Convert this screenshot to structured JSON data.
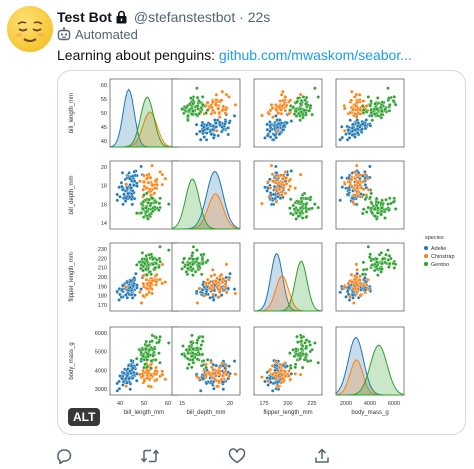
{
  "tweet": {
    "display_name": "Test Bot",
    "handle": "@stefanstestbot",
    "separator": "·",
    "time": "22s",
    "automated_label": "Automated",
    "text_prefix": "Learning about penguins: ",
    "link_text": "github.com/mwaskom/seabor..."
  },
  "media": {
    "alt_badge": "ALT",
    "legend_title": "species",
    "species": [
      {
        "name": "Adelie",
        "color": "#1f77b4"
      },
      {
        "name": "Chinstrap",
        "color": "#ff7f0e"
      },
      {
        "name": "Gentoo",
        "color": "#2ca02c"
      }
    ]
  },
  "icons": [
    "lock-icon",
    "bot-icon",
    "reply-icon",
    "retweet-icon",
    "like-icon",
    "share-icon"
  ],
  "chart_data": {
    "type": "scatter",
    "subtype": "pairplot",
    "variables": [
      "bill_length_mm",
      "bill_depth_mm",
      "flipper_length_mm",
      "body_mass_g"
    ],
    "diagonal": "kde",
    "hue": "species",
    "ranges": {
      "bill_length_mm": [
        30,
        62
      ],
      "bill_depth_mm": [
        12,
        22
      ],
      "flipper_length_mm": [
        165,
        240
      ],
      "body_mass_g": [
        2500,
        6600
      ]
    },
    "row_ticks": [
      [
        "40",
        "45",
        "50",
        "55",
        "60"
      ],
      [
        "14",
        "16",
        "18",
        "20"
      ],
      [
        "170",
        "180",
        "190",
        "200",
        "210",
        "220",
        "230"
      ],
      [
        "3000",
        "4000",
        "5000",
        "6000"
      ]
    ],
    "col_ticks": [
      [
        "40",
        "50",
        "60"
      ],
      [
        "15",
        "20"
      ],
      [
        "175",
        "200",
        "225"
      ],
      [
        "2000",
        "4000",
        "6000"
      ]
    ],
    "series": [
      {
        "name": "Adelie",
        "means": [
          38.8,
          18.3,
          190,
          3700
        ],
        "sds": [
          2.6,
          1.2,
          6.5,
          460
        ]
      },
      {
        "name": "Chinstrap",
        "means": [
          48.8,
          18.4,
          196,
          3733
        ],
        "sds": [
          3.3,
          1.1,
          7.1,
          384
        ]
      },
      {
        "name": "Gentoo",
        "means": [
          47.5,
          15.0,
          217,
          5076
        ],
        "sds": [
          3.1,
          1.0,
          6.5,
          504
        ]
      }
    ],
    "legend": {
      "title": "species",
      "position": "right"
    }
  }
}
